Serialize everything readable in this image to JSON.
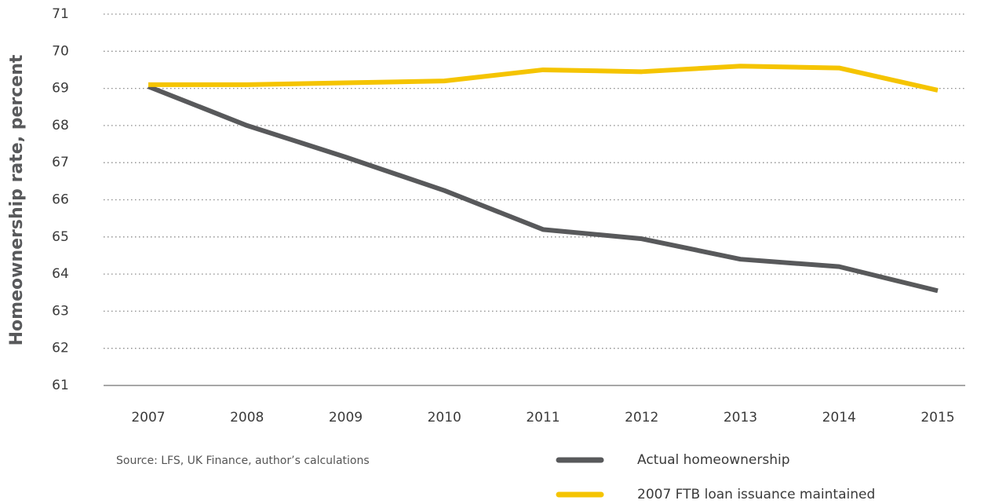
{
  "chart_data": {
    "type": "line",
    "y_label": "Homeownership rate, percent",
    "source": "Source: LFS, UK Finance, author’s calculations",
    "categories": [
      "2007",
      "2008",
      "2009",
      "2010",
      "2011",
      "2012",
      "2013",
      "2014",
      "2015"
    ],
    "series": [
      {
        "name": "Actual homeownership",
        "color": "#58595b",
        "values": [
          69.05,
          68.0,
          67.15,
          66.25,
          65.2,
          64.95,
          64.4,
          64.2,
          63.55
        ]
      },
      {
        "name": "2007 FTB loan issuance maintained",
        "color": "#f5c400",
        "values": [
          69.1,
          69.1,
          69.15,
          69.2,
          69.5,
          69.45,
          69.6,
          69.55,
          68.95
        ]
      }
    ],
    "ylim": [
      61,
      71
    ],
    "yticks": [
      61,
      62,
      63,
      64,
      65,
      66,
      67,
      68,
      69,
      70,
      71
    ],
    "grid": true
  }
}
